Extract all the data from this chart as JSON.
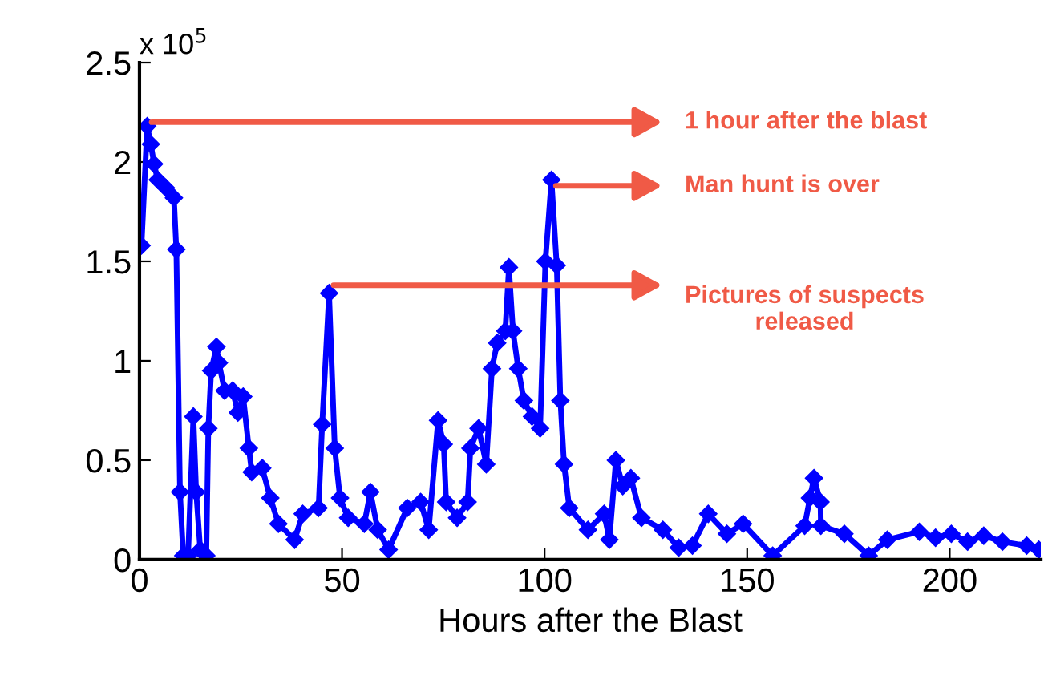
{
  "chart_data": {
    "type": "line",
    "xlabel": "Hours after the Blast",
    "x": [
      0.5,
      1.9,
      2.8,
      3.6,
      4.5,
      6.5,
      8.5,
      9.1,
      10,
      10.8,
      12,
      13.3,
      14,
      15,
      16.5,
      17,
      17.7,
      19,
      19.6,
      21,
      23,
      24.3,
      25.6,
      27,
      27.7,
      30.3,
      32.3,
      34.3,
      38.3,
      40.3,
      44.2,
      45.1,
      46.8,
      48.2,
      49.5,
      51.5,
      55.5,
      57,
      58.8,
      61.5,
      66.1,
      69.4,
      71.4,
      73.7,
      75.1,
      75.7,
      78.4,
      81,
      81.7,
      83.7,
      85.6,
      87,
      88.3,
      90.3,
      91.2,
      92.2,
      93.5,
      94.9,
      96.9,
      98.9,
      100.2,
      101.7,
      103,
      103.9,
      104.8,
      106.1,
      110.7,
      114.7,
      116,
      117.6,
      119.3,
      121.3,
      123.9,
      129.2,
      133.1,
      136.5,
      140.4,
      145,
      149,
      156.3,
      164.2,
      165.5,
      166.5,
      168.1,
      168.2,
      174,
      180,
      184.6,
      192.5,
      196.5,
      200.4,
      204.4,
      208.4,
      213,
      219,
      222
    ],
    "series": [
      {
        "color": "#0000ff",
        "values": [
          1.58,
          2.18,
          2.09,
          1.99,
          1.91,
          1.87,
          1.82,
          1.56,
          0.34,
          0.02,
          0.02,
          0.72,
          0.34,
          0.05,
          0.02,
          0.66,
          0.95,
          1.07,
          0.99,
          0.85,
          0.85,
          0.74,
          0.82,
          0.56,
          0.44,
          0.46,
          0.31,
          0.18,
          0.1,
          0.23,
          0.26,
          0.68,
          1.34,
          0.56,
          0.31,
          0.21,
          0.18,
          0.34,
          0.15,
          0.05,
          0.26,
          0.29,
          0.15,
          0.7,
          0.58,
          0.29,
          0.21,
          0.29,
          0.56,
          0.66,
          0.48,
          0.96,
          1.09,
          1.15,
          1.47,
          1.15,
          0.96,
          0.8,
          0.72,
          0.66,
          1.5,
          1.91,
          1.48,
          0.8,
          0.48,
          0.26,
          0.15,
          0.23,
          0.1,
          0.5,
          0.37,
          0.41,
          0.21,
          0.15,
          0.06,
          0.07,
          0.23,
          0.13,
          0.18,
          0.02,
          0.17,
          0.31,
          0.41,
          0.29,
          0.17,
          0.13,
          0.02,
          0.1,
          0.14,
          0.11,
          0.13,
          0.09,
          0.12,
          0.09,
          0.07,
          0.05
        ]
      }
    ],
    "xlim": [
      0,
      222.5
    ],
    "xticks": [
      0,
      50,
      100,
      150,
      200
    ],
    "ylim": [
      0,
      2.5
    ],
    "yticks": [
      0,
      0.5,
      1,
      1.5,
      2,
      2.5
    ],
    "marker": "diamond",
    "line_style": "solid",
    "grid": false,
    "annotations": [
      "x 10$^{5}$",
      {
        "text": "1 hour after the blast",
        "x": 1.9,
        "y": 2.2
      },
      {
        "text": "Man hunt is over",
        "x": 101.7,
        "y": 1.88
      },
      {
        "text": "Pictures of suspects\nreleased",
        "x": 46.8,
        "y": 1.38
      }
    ]
  }
}
